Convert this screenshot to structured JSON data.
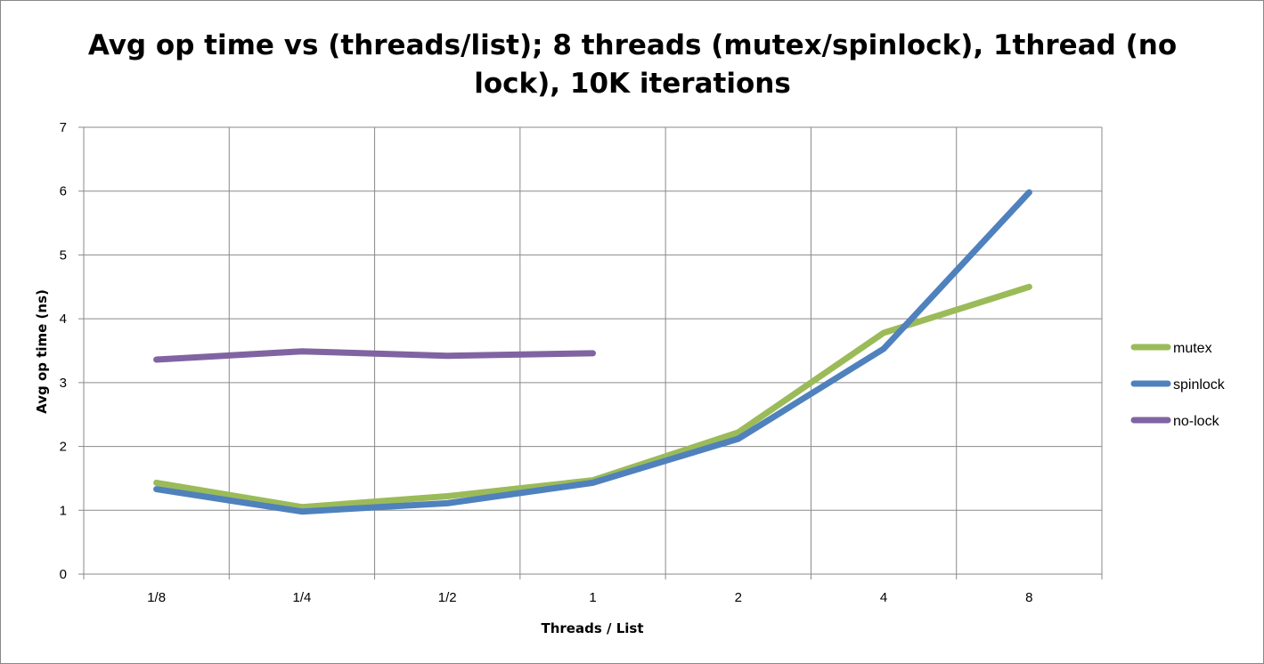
{
  "chart_data": {
    "type": "line",
    "title_lines": [
      "Avg op time vs (threads/list); 8 threads (mutex/spinlock), 1thread  (no",
      "lock), 10K iterations"
    ],
    "xlabel": "Threads / List",
    "ylabel": "Avg op time (ns)",
    "categories": [
      "1/8",
      "1/4",
      "1/2",
      "1",
      "2",
      "4",
      "8"
    ],
    "ylim": [
      0,
      7
    ],
    "yticks": [
      "0",
      "1",
      "2",
      "3",
      "4",
      "5",
      "6",
      "7"
    ],
    "grid": true,
    "legend_position": "right",
    "series": [
      {
        "name": "mutex",
        "color": "#9BBB59",
        "values": [
          1.43,
          1.05,
          1.22,
          1.47,
          2.22,
          3.78,
          4.5
        ]
      },
      {
        "name": "spinlock",
        "color": "#4F81BD",
        "values": [
          1.33,
          0.98,
          1.11,
          1.43,
          2.12,
          3.53,
          5.98
        ]
      },
      {
        "name": "no-lock",
        "color": "#8064A2",
        "values": [
          3.36,
          3.49,
          3.42,
          3.46,
          null,
          null,
          null
        ]
      }
    ]
  }
}
